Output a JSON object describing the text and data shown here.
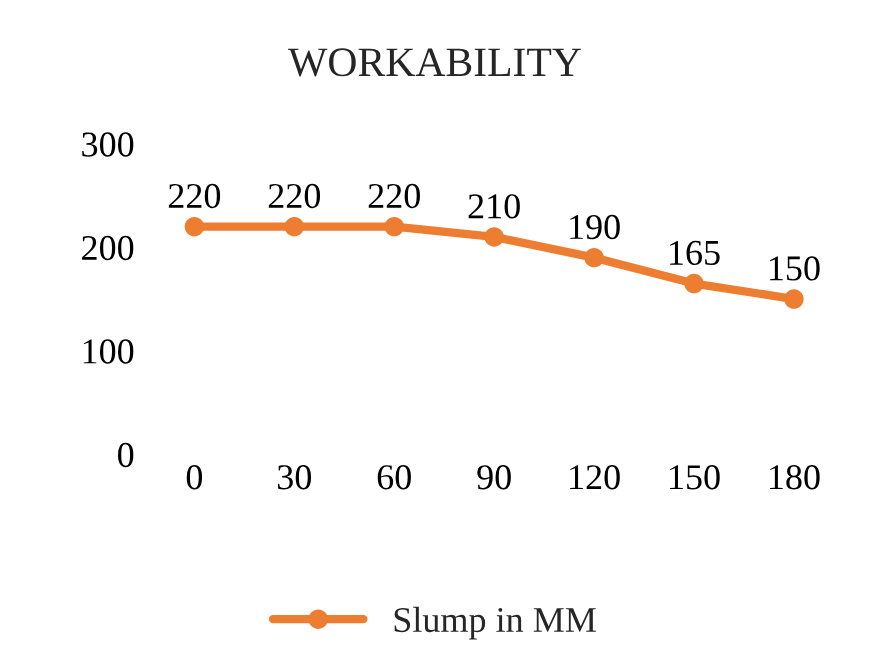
{
  "chart_data": {
    "type": "line",
    "title": "WORKABILITY",
    "categories": [
      "0",
      "30",
      "60",
      "90",
      "120",
      "150",
      "180"
    ],
    "series": [
      {
        "name": "Slump in MM",
        "color": "#ed7d31",
        "values": [
          220,
          220,
          220,
          210,
          190,
          165,
          150
        ]
      }
    ],
    "ylim": [
      0,
      300
    ],
    "yticks": [
      0,
      100,
      200,
      300
    ],
    "data_labels": true,
    "legend": "bottom",
    "marker": "circle",
    "grid": false
  }
}
